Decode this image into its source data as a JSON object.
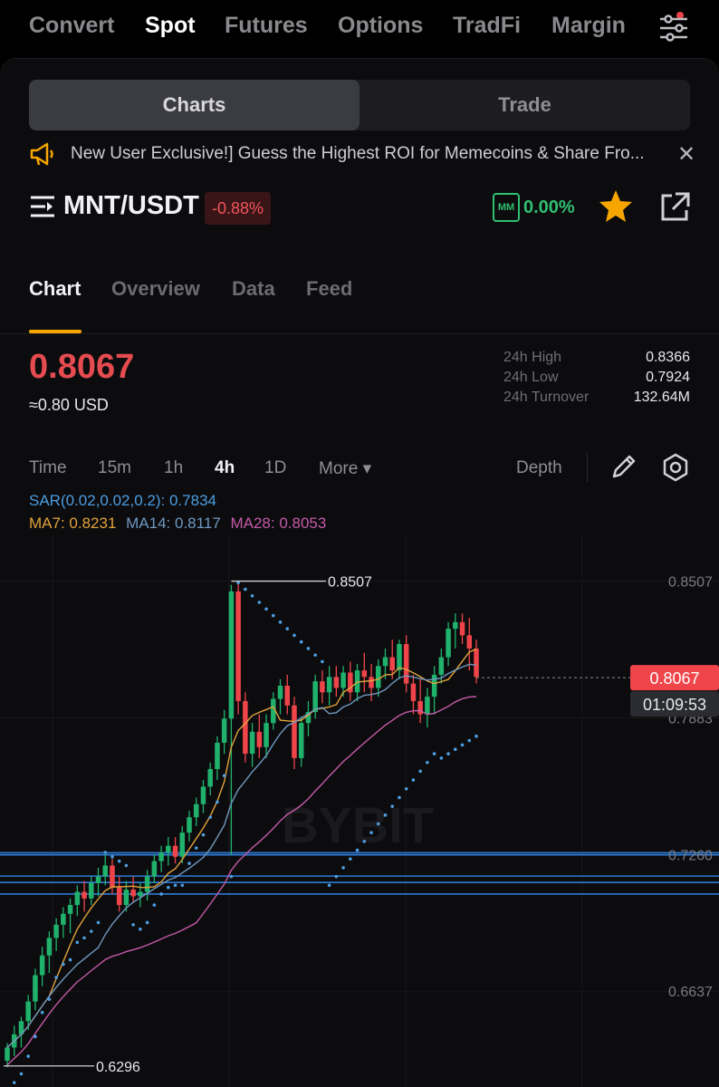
{
  "nav": {
    "items": [
      "Convert",
      "Spot",
      "Futures",
      "Options",
      "TradFi",
      "Margin"
    ],
    "active": "Spot"
  },
  "segment": {
    "charts": "Charts",
    "trade": "Trade"
  },
  "banner": {
    "text": "New User Exclusive!] Guess the Highest ROI for Memecoins & Share Fro...",
    "close": "✕"
  },
  "pair": {
    "name": "MNT/USDT",
    "change": "-0.88%",
    "mm_label": "MM",
    "mm_value": "0.00%"
  },
  "tabs": [
    "Chart",
    "Overview",
    "Data",
    "Feed"
  ],
  "price": {
    "last": "0.8067",
    "usd": "≈0.80 USD"
  },
  "stats": [
    {
      "label": "24h High",
      "value": "0.8366"
    },
    {
      "label": "24h Low",
      "value": "0.7924"
    },
    {
      "label": "24h Turnover",
      "value": "132.64M"
    }
  ],
  "toolbar": {
    "timeframes": [
      "Time",
      "15m",
      "1h",
      "4h",
      "1D",
      "More ▾"
    ],
    "active": "4h",
    "depth": "Depth"
  },
  "indicators": {
    "sar": "SAR(0.02,0.02,0.2): 0.7834",
    "ma7": "MA7: 0.8231",
    "ma14": "MA14: 0.8117",
    "ma28": "MA28: 0.8053"
  },
  "colors": {
    "up": "#20b26c",
    "down": "#ef454a",
    "accent": "#f7a600",
    "sar": "#4d9de0",
    "ma7": "#e2a23c",
    "ma14": "#6f98c0",
    "ma28": "#c45aa8",
    "hline": "#2e7bd6"
  },
  "chart_data": {
    "type": "candlestick",
    "watermark": "BYBIT",
    "y_axis_labels": [
      "0.8507",
      "0.7883",
      "0.7260",
      "0.6637"
    ],
    "ylim": [
      0.62,
      0.872
    ],
    "last_price_label": "0.8067",
    "countdown": "01:09:53",
    "high_marker": "0.8507",
    "low_marker": "0.6296",
    "horizontal_levels": [
      0.7268,
      0.7259,
      0.7162,
      0.7133,
      0.708
    ],
    "candles": [
      [
        0.632,
        0.64,
        0.629,
        0.638
      ],
      [
        0.638,
        0.648,
        0.634,
        0.644
      ],
      [
        0.644,
        0.652,
        0.638,
        0.65
      ],
      [
        0.65,
        0.662,
        0.646,
        0.659
      ],
      [
        0.659,
        0.674,
        0.655,
        0.671
      ],
      [
        0.671,
        0.684,
        0.666,
        0.68
      ],
      [
        0.68,
        0.691,
        0.672,
        0.688
      ],
      [
        0.688,
        0.697,
        0.682,
        0.694
      ],
      [
        0.694,
        0.702,
        0.688,
        0.699
      ],
      [
        0.699,
        0.706,
        0.69,
        0.703
      ],
      [
        0.703,
        0.712,
        0.698,
        0.709
      ],
      [
        0.709,
        0.714,
        0.7,
        0.706
      ],
      [
        0.706,
        0.716,
        0.703,
        0.713
      ],
      [
        0.713,
        0.72,
        0.707,
        0.716
      ],
      [
        0.716,
        0.726,
        0.712,
        0.721
      ],
      [
        0.721,
        0.724,
        0.708,
        0.711
      ],
      [
        0.711,
        0.716,
        0.7,
        0.703
      ],
      [
        0.703,
        0.714,
        0.7,
        0.71
      ],
      [
        0.71,
        0.716,
        0.704,
        0.707
      ],
      [
        0.707,
        0.713,
        0.702,
        0.709
      ],
      [
        0.709,
        0.719,
        0.705,
        0.716
      ],
      [
        0.716,
        0.726,
        0.713,
        0.723
      ],
      [
        0.723,
        0.73,
        0.718,
        0.727
      ],
      [
        0.727,
        0.734,
        0.721,
        0.73
      ],
      [
        0.73,
        0.734,
        0.722,
        0.725
      ],
      [
        0.725,
        0.739,
        0.722,
        0.736
      ],
      [
        0.736,
        0.746,
        0.732,
        0.743
      ],
      [
        0.743,
        0.752,
        0.739,
        0.749
      ],
      [
        0.749,
        0.76,
        0.745,
        0.757
      ],
      [
        0.757,
        0.768,
        0.753,
        0.765
      ],
      [
        0.765,
        0.78,
        0.76,
        0.777
      ],
      [
        0.777,
        0.792,
        0.772,
        0.788
      ],
      [
        0.788,
        0.849,
        0.726,
        0.846
      ],
      [
        0.846,
        0.85,
        0.79,
        0.796
      ],
      [
        0.796,
        0.8,
        0.768,
        0.772
      ],
      [
        0.772,
        0.786,
        0.766,
        0.782
      ],
      [
        0.782,
        0.79,
        0.77,
        0.775
      ],
      [
        0.775,
        0.79,
        0.77,
        0.786
      ],
      [
        0.786,
        0.8,
        0.783,
        0.797
      ],
      [
        0.797,
        0.806,
        0.79,
        0.803
      ],
      [
        0.803,
        0.808,
        0.79,
        0.794
      ],
      [
        0.794,
        0.798,
        0.765,
        0.77
      ],
      [
        0.77,
        0.789,
        0.766,
        0.786
      ],
      [
        0.786,
        0.796,
        0.78,
        0.791
      ],
      [
        0.791,
        0.808,
        0.788,
        0.805
      ],
      [
        0.805,
        0.81,
        0.795,
        0.8
      ],
      [
        0.8,
        0.812,
        0.794,
        0.807
      ],
      [
        0.807,
        0.812,
        0.798,
        0.802
      ],
      [
        0.802,
        0.812,
        0.798,
        0.809
      ],
      [
        0.809,
        0.814,
        0.796,
        0.8
      ],
      [
        0.8,
        0.813,
        0.796,
        0.81
      ],
      [
        0.81,
        0.818,
        0.8,
        0.807
      ],
      [
        0.807,
        0.813,
        0.796,
        0.802
      ],
      [
        0.802,
        0.815,
        0.798,
        0.812
      ],
      [
        0.812,
        0.82,
        0.806,
        0.816
      ],
      [
        0.816,
        0.824,
        0.806,
        0.81
      ],
      [
        0.81,
        0.824,
        0.806,
        0.822
      ],
      [
        0.822,
        0.826,
        0.8,
        0.804
      ],
      [
        0.804,
        0.808,
        0.79,
        0.796
      ],
      [
        0.796,
        0.806,
        0.786,
        0.79
      ],
      [
        0.79,
        0.802,
        0.784,
        0.798
      ],
      [
        0.798,
        0.812,
        0.79,
        0.808
      ],
      [
        0.808,
        0.82,
        0.804,
        0.816
      ],
      [
        0.816,
        0.832,
        0.812,
        0.829
      ],
      [
        0.829,
        0.836,
        0.82,
        0.832
      ],
      [
        0.832,
        0.836,
        0.822,
        0.826
      ],
      [
        0.826,
        0.834,
        0.81,
        0.82
      ],
      [
        0.82,
        0.824,
        0.804,
        0.807
      ]
    ]
  }
}
